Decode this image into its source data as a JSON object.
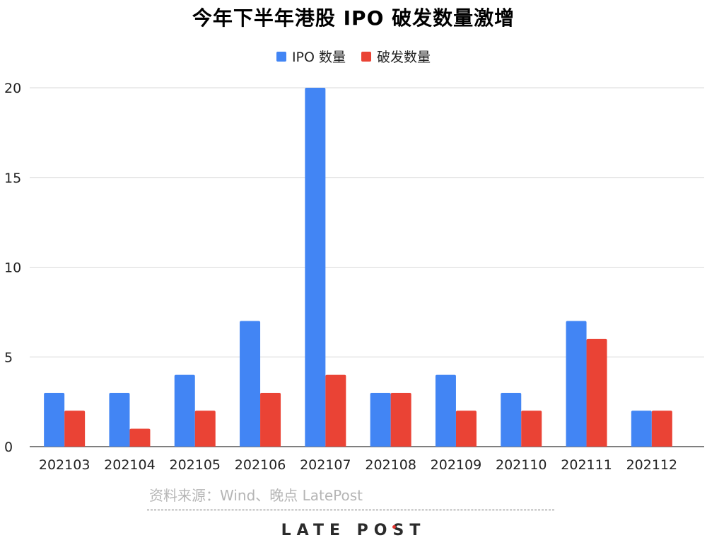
{
  "chart_data": {
    "type": "bar",
    "title": "今年下半年港股 IPO 破发数量激增",
    "categories": [
      "202103",
      "202104",
      "202105",
      "202106",
      "202107",
      "202108",
      "202109",
      "202110",
      "202111",
      "202112"
    ],
    "series": [
      {
        "name": "IPO 数量",
        "color": "#4285f4",
        "values": [
          3,
          3,
          4,
          7,
          20,
          3,
          4,
          3,
          7,
          2
        ]
      },
      {
        "name": "破发数量",
        "color": "#ea4335",
        "values": [
          2,
          1,
          2,
          3,
          4,
          3,
          2,
          2,
          6,
          2
        ]
      }
    ],
    "ylim": [
      0,
      20
    ],
    "yticks": [
      0,
      5,
      10,
      15,
      20
    ],
    "grid": true,
    "legend": "top-center"
  },
  "footer": {
    "source": "资料来源：Wind、晚点 LatePost",
    "brand": "LATE POST"
  }
}
